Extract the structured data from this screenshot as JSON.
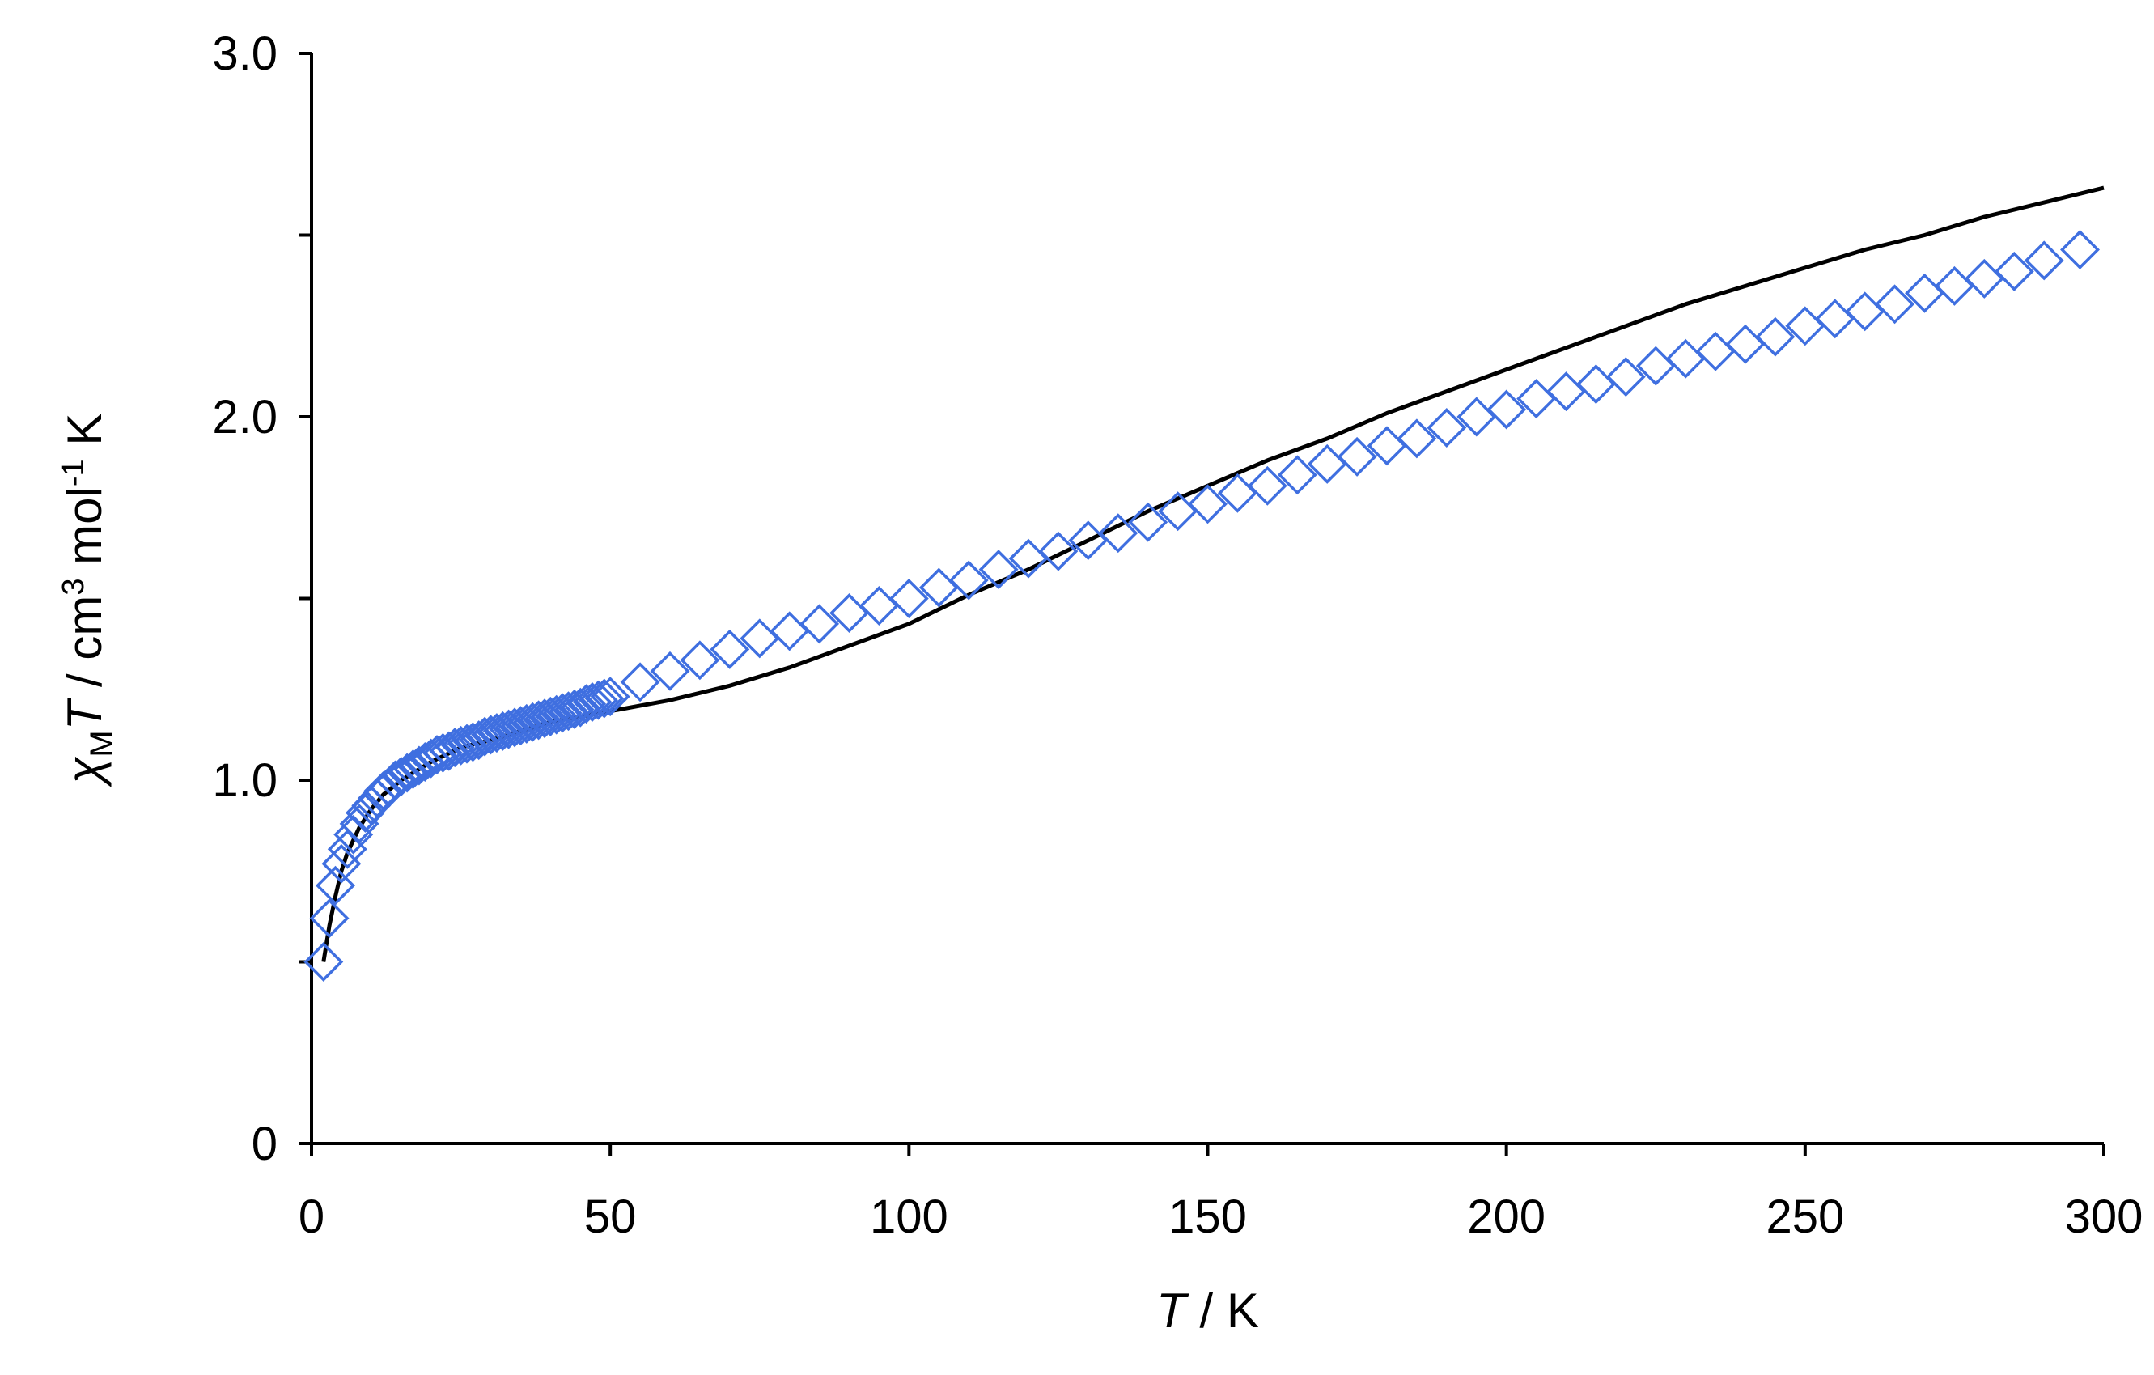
{
  "chart_data": {
    "type": "scatter",
    "xlabel": {
      "symbol": "T",
      "unit": " / K"
    },
    "ylabel": {
      "chi": "χ",
      "chi_subscript": "M",
      "T": "T",
      "unit_prefix": " / cm",
      "cm_exponent": "3",
      "mol": " mol",
      "mol_exponent": "-1",
      "K": " K"
    },
    "xlim": [
      0,
      300
    ],
    "ylim": [
      0,
      3.0
    ],
    "x_ticks": [
      0,
      50,
      100,
      150,
      200,
      250,
      300
    ],
    "x_tick_labels": [
      "0",
      "50",
      "100",
      "150",
      "200",
      "250",
      "300"
    ],
    "y_ticks": [
      0,
      0.5,
      1.0,
      1.5,
      2.0,
      2.5,
      3.0
    ],
    "y_tick_labels": [
      "0",
      "",
      "1.0",
      "",
      "2.0",
      "",
      "3.0"
    ],
    "grid": false,
    "legend": "none",
    "series": [
      {
        "kind": "markers",
        "marker": "open-diamond",
        "color": "#3f6fe0",
        "points": [
          [
            2,
            0.5
          ],
          [
            3,
            0.62
          ],
          [
            4,
            0.71
          ],
          [
            5,
            0.77
          ],
          [
            6,
            0.81
          ],
          [
            7,
            0.85
          ],
          [
            8,
            0.88
          ],
          [
            9,
            0.91
          ],
          [
            10,
            0.93
          ],
          [
            11,
            0.95
          ],
          [
            12,
            0.97
          ],
          [
            13,
            0.98
          ],
          [
            14,
            1.0
          ],
          [
            15,
            1.01
          ],
          [
            16,
            1.02
          ],
          [
            17,
            1.03
          ],
          [
            18,
            1.04
          ],
          [
            19,
            1.05
          ],
          [
            20,
            1.06
          ],
          [
            21,
            1.07
          ],
          [
            22,
            1.075
          ],
          [
            23,
            1.08
          ],
          [
            24,
            1.09
          ],
          [
            25,
            1.095
          ],
          [
            26,
            1.1
          ],
          [
            27,
            1.105
          ],
          [
            28,
            1.11
          ],
          [
            29,
            1.12
          ],
          [
            30,
            1.125
          ],
          [
            31,
            1.13
          ],
          [
            32,
            1.135
          ],
          [
            33,
            1.14
          ],
          [
            34,
            1.145
          ],
          [
            35,
            1.15
          ],
          [
            36,
            1.155
          ],
          [
            37,
            1.16
          ],
          [
            38,
            1.165
          ],
          [
            39,
            1.17
          ],
          [
            40,
            1.175
          ],
          [
            41,
            1.18
          ],
          [
            42,
            1.185
          ],
          [
            43,
            1.19
          ],
          [
            44,
            1.195
          ],
          [
            45,
            1.2
          ],
          [
            46,
            1.21
          ],
          [
            47,
            1.215
          ],
          [
            48,
            1.22
          ],
          [
            49,
            1.225
          ],
          [
            50,
            1.23
          ],
          [
            55,
            1.27
          ],
          [
            60,
            1.3
          ],
          [
            65,
            1.33
          ],
          [
            70,
            1.36
          ],
          [
            75,
            1.39
          ],
          [
            80,
            1.41
          ],
          [
            85,
            1.43
          ],
          [
            90,
            1.46
          ],
          [
            95,
            1.48
          ],
          [
            100,
            1.5
          ],
          [
            105,
            1.53
          ],
          [
            110,
            1.55
          ],
          [
            115,
            1.58
          ],
          [
            120,
            1.61
          ],
          [
            125,
            1.63
          ],
          [
            130,
            1.66
          ],
          [
            135,
            1.68
          ],
          [
            140,
            1.71
          ],
          [
            145,
            1.74
          ],
          [
            150,
            1.76
          ],
          [
            155,
            1.79
          ],
          [
            160,
            1.81
          ],
          [
            165,
            1.84
          ],
          [
            170,
            1.87
          ],
          [
            175,
            1.89
          ],
          [
            180,
            1.92
          ],
          [
            185,
            1.94
          ],
          [
            190,
            1.97
          ],
          [
            195,
            2.0
          ],
          [
            200,
            2.02
          ],
          [
            205,
            2.05
          ],
          [
            210,
            2.07
          ],
          [
            215,
            2.09
          ],
          [
            220,
            2.11
          ],
          [
            225,
            2.14
          ],
          [
            230,
            2.16
          ],
          [
            235,
            2.18
          ],
          [
            240,
            2.2
          ],
          [
            245,
            2.22
          ],
          [
            250,
            2.25
          ],
          [
            255,
            2.27
          ],
          [
            260,
            2.29
          ],
          [
            265,
            2.31
          ],
          [
            270,
            2.34
          ],
          [
            275,
            2.36
          ],
          [
            280,
            2.38
          ],
          [
            285,
            2.4
          ],
          [
            290,
            2.43
          ],
          [
            296,
            2.46
          ]
        ]
      },
      {
        "kind": "line",
        "color": "#000000",
        "points": [
          [
            2,
            0.5
          ],
          [
            3,
            0.6
          ],
          [
            4,
            0.68
          ],
          [
            5,
            0.75
          ],
          [
            6,
            0.8
          ],
          [
            8,
            0.87
          ],
          [
            10,
            0.92
          ],
          [
            12,
            0.96
          ],
          [
            15,
            1.0
          ],
          [
            20,
            1.05
          ],
          [
            25,
            1.09
          ],
          [
            30,
            1.11
          ],
          [
            40,
            1.16
          ],
          [
            50,
            1.19
          ],
          [
            60,
            1.22
          ],
          [
            70,
            1.26
          ],
          [
            80,
            1.31
          ],
          [
            90,
            1.37
          ],
          [
            100,
            1.43
          ],
          [
            110,
            1.51
          ],
          [
            120,
            1.58
          ],
          [
            130,
            1.66
          ],
          [
            140,
            1.74
          ],
          [
            150,
            1.81
          ],
          [
            160,
            1.88
          ],
          [
            170,
            1.94
          ],
          [
            180,
            2.01
          ],
          [
            190,
            2.07
          ],
          [
            200,
            2.13
          ],
          [
            210,
            2.19
          ],
          [
            220,
            2.25
          ],
          [
            230,
            2.31
          ],
          [
            240,
            2.36
          ],
          [
            250,
            2.41
          ],
          [
            260,
            2.46
          ],
          [
            270,
            2.5
          ],
          [
            280,
            2.55
          ],
          [
            290,
            2.59
          ],
          [
            300,
            2.63
          ]
        ]
      }
    ]
  }
}
